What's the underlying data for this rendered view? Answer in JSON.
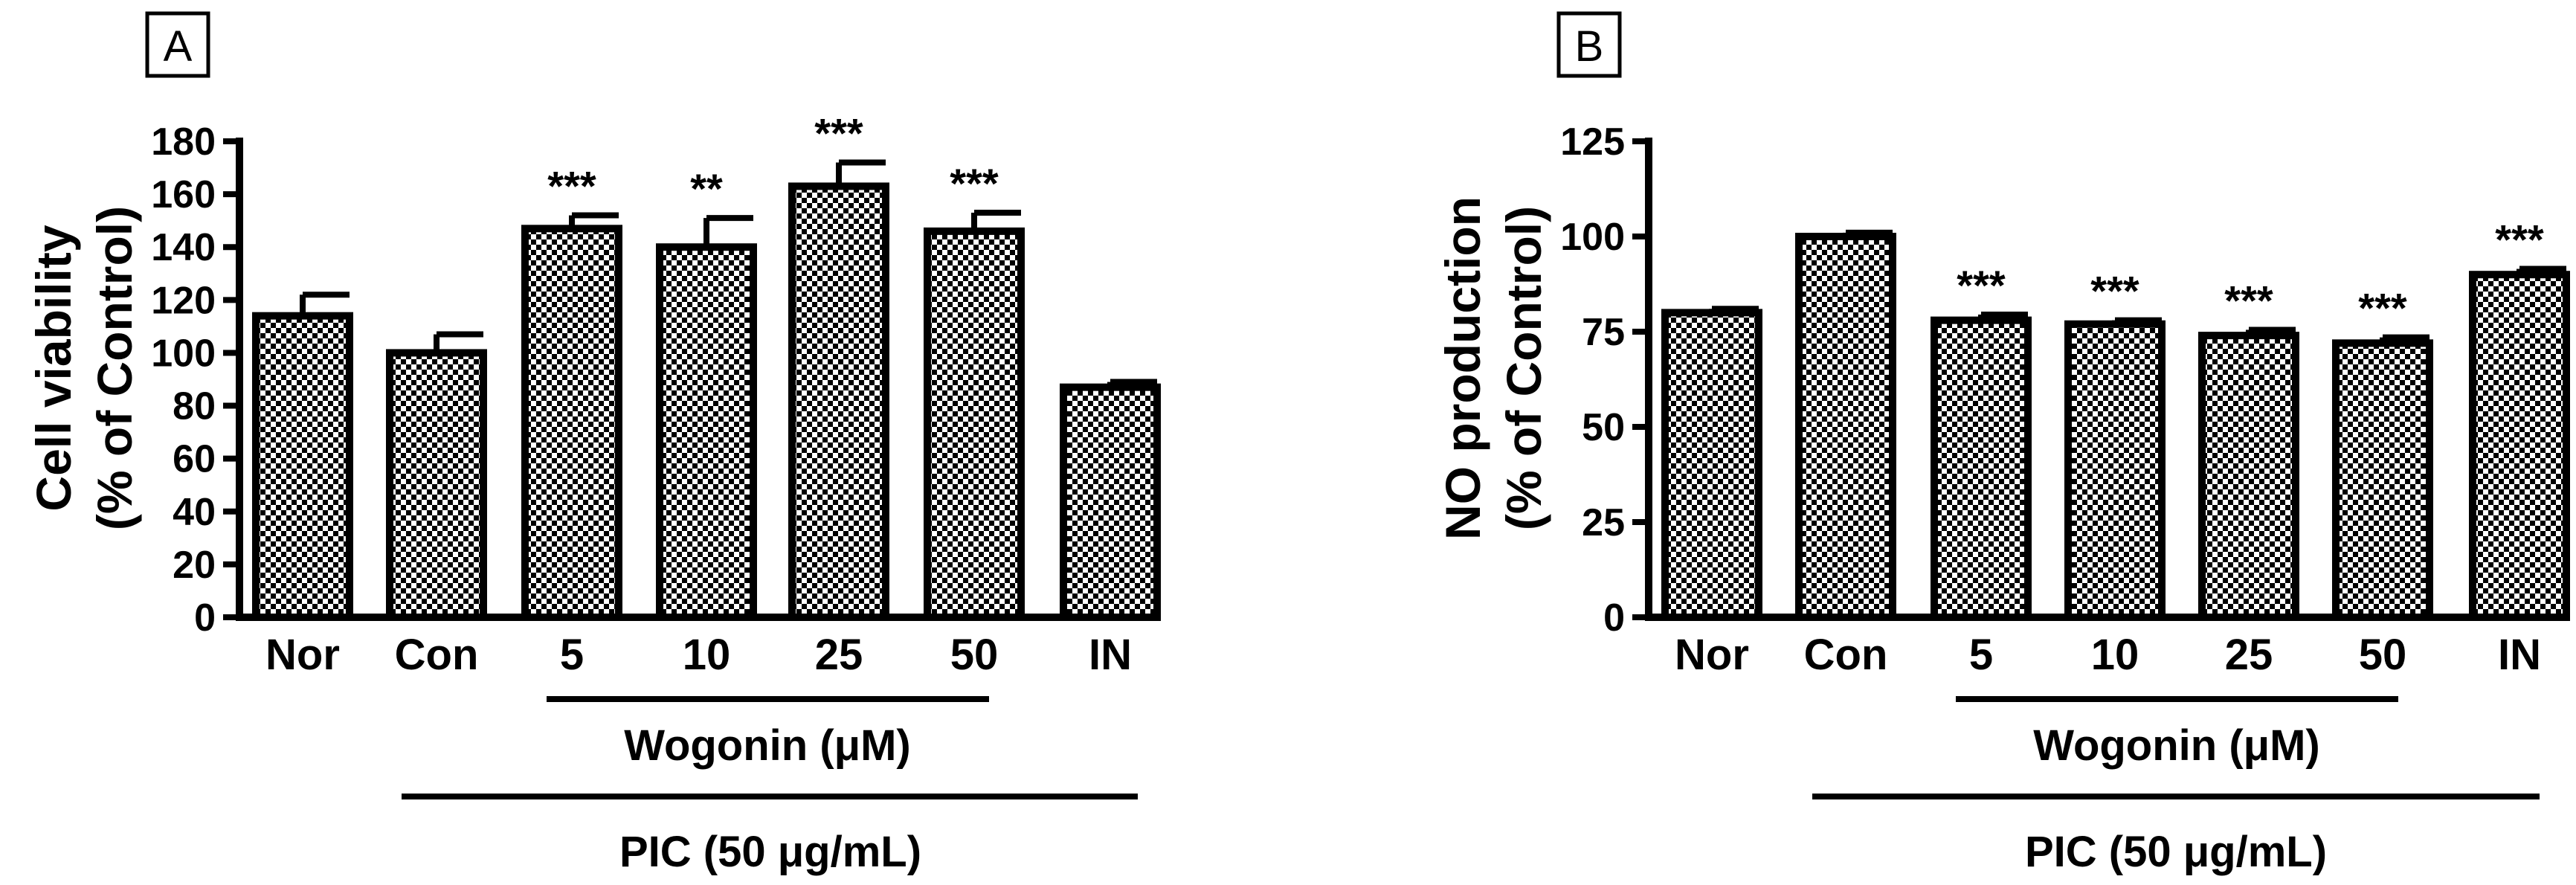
{
  "figure": {
    "panels": [
      {
        "id": "A",
        "label": "A",
        "y_title_line1": "Cell viability",
        "y_title_line2": "(% of Control)",
        "group_label": "Wogonin (μM)",
        "treatment_label": "PIC (50 μg/mL)"
      },
      {
        "id": "B",
        "label": "B",
        "y_title_line1": "NO production",
        "y_title_line2": "(% of Control)",
        "group_label": "Wogonin (μM)",
        "treatment_label": "PIC (50 μg/mL)"
      }
    ],
    "colors": {
      "bar_stroke": "#000000",
      "check_dark": "#000000",
      "check_light": "#ffffff"
    }
  },
  "chart_data": [
    {
      "type": "bar",
      "title": "A",
      "xlabel": "",
      "ylabel": "Cell viability (% of Control)",
      "categories": [
        "Nor",
        "Con",
        "5",
        "10",
        "25",
        "50",
        "IN"
      ],
      "values": [
        114,
        100,
        147,
        140,
        163,
        146,
        87
      ],
      "errors": [
        8,
        7,
        5,
        11,
        9,
        7,
        2
      ],
      "significance": [
        "",
        "",
        "***",
        "**",
        "***",
        "***",
        ""
      ],
      "ylim": [
        0,
        180
      ],
      "yticks": [
        0,
        20,
        40,
        60,
        80,
        100,
        120,
        140,
        160,
        180
      ],
      "ytick_labels": [
        "0",
        "20",
        "40",
        "60",
        "80",
        "100",
        "120",
        "140",
        "160",
        "180"
      ],
      "grid": false
    },
    {
      "type": "bar",
      "title": "B",
      "xlabel": "",
      "ylabel": "NO production (% of Control)",
      "categories": [
        "Nor",
        "Con",
        "5",
        "10",
        "25",
        "50",
        "IN"
      ],
      "values": [
        80,
        100,
        78,
        77,
        74,
        72,
        90
      ],
      "errors": [
        1,
        1,
        1.5,
        1,
        1.5,
        1.5,
        1.5
      ],
      "significance": [
        "",
        "",
        "***",
        "***",
        "***",
        "***",
        "***"
      ],
      "ylim": [
        0,
        125
      ],
      "yticks": [
        0,
        25,
        50,
        75,
        100,
        125
      ],
      "ytick_labels": [
        "0",
        "25",
        "50",
        "75",
        "100",
        "125"
      ],
      "grid": false
    }
  ]
}
